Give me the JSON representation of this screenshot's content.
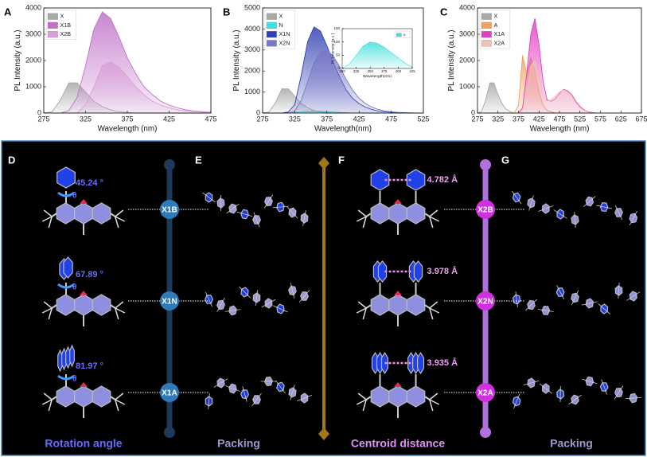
{
  "chart_data": [
    {
      "type": "line",
      "panel": "A",
      "xlabel": "Wavelength (nm)",
      "ylabel": "PL Intensity (a.u.)",
      "x": [
        275,
        285,
        295,
        305,
        315,
        325,
        335,
        345,
        355,
        365,
        375,
        385,
        395,
        405,
        415,
        425,
        435,
        445,
        455,
        465,
        475
      ],
      "xlim": [
        275,
        475
      ],
      "xticks": [
        275,
        325,
        375,
        425,
        475
      ],
      "ylim": [
        0,
        4000
      ],
      "yticks": [
        0,
        1000,
        2000,
        3000,
        4000
      ],
      "legend": "upper left",
      "series": [
        {
          "name": "X",
          "color": "#a8a8a8",
          "values": [
            0,
            50,
            500,
            1150,
            1150,
            800,
            450,
            250,
            120,
            50,
            20,
            0,
            0,
            0,
            0,
            0,
            0,
            0,
            0,
            0,
            0
          ]
        },
        {
          "name": "X1B",
          "color": "#c070c8",
          "values": [
            0,
            0,
            0,
            100,
            600,
            1800,
            3200,
            3850,
            3600,
            2900,
            2100,
            1500,
            1000,
            700,
            450,
            300,
            200,
            120,
            80,
            50,
            30
          ]
        },
        {
          "name": "X2B",
          "color": "#d8a0d8",
          "values": [
            0,
            0,
            0,
            0,
            0,
            300,
            1000,
            1800,
            1950,
            1750,
            1400,
            1000,
            700,
            450,
            300,
            200,
            120,
            80,
            50,
            30,
            20
          ]
        }
      ]
    },
    {
      "type": "line",
      "panel": "B",
      "xlabel": "Wavelength(nm)",
      "ylabel": "PL Intensity (a.u.)",
      "x": [
        275,
        285,
        295,
        305,
        315,
        325,
        335,
        345,
        355,
        365,
        375,
        385,
        395,
        405,
        415,
        425,
        435,
        445,
        455,
        465,
        475,
        485,
        495,
        505,
        515,
        525
      ],
      "xlim": [
        275,
        525
      ],
      "xticks": [
        275,
        325,
        375,
        425,
        475,
        525
      ],
      "ylim": [
        0,
        5000
      ],
      "yticks": [
        0,
        1000,
        2000,
        3000,
        4000,
        5000
      ],
      "legend": "upper left",
      "series": [
        {
          "name": "X",
          "color": "#a8a8a8",
          "values": [
            0,
            50,
            500,
            1150,
            1150,
            800,
            450,
            250,
            120,
            50,
            20,
            0,
            0,
            0,
            0,
            0,
            0,
            0,
            0,
            0,
            0,
            0,
            0,
            0,
            0,
            0
          ]
        },
        {
          "name": "N",
          "color": "#40dede",
          "values": [
            0,
            0,
            0,
            0,
            10,
            30,
            60,
            90,
            100,
            90,
            70,
            50,
            30,
            15,
            5,
            0,
            0,
            0,
            0,
            0,
            0,
            0,
            0,
            0,
            0,
            0
          ]
        },
        {
          "name": "X1N",
          "color": "#3040b0",
          "values": [
            0,
            0,
            0,
            0,
            50,
            400,
            1800,
            3400,
            4100,
            3900,
            3200,
            2400,
            1700,
            1100,
            700,
            450,
            280,
            170,
            100,
            60,
            35,
            20,
            10,
            5,
            0,
            0
          ]
        },
        {
          "name": "X2N",
          "color": "#7878c8",
          "values": [
            0,
            0,
            0,
            0,
            0,
            100,
            600,
            1500,
            2400,
            2900,
            3000,
            2700,
            2200,
            1600,
            1100,
            700,
            450,
            280,
            170,
            100,
            60,
            35,
            20,
            10,
            5,
            0
          ]
        }
      ]
    },
    {
      "type": "line",
      "panel": "C",
      "xlabel": "Wavelength (nm)",
      "ylabel": "PL Intensity (a.u.)",
      "x": [
        275,
        285,
        295,
        305,
        315,
        325,
        335,
        345,
        355,
        365,
        375,
        385,
        395,
        405,
        415,
        425,
        435,
        445,
        455,
        465,
        475,
        485,
        495,
        505,
        515,
        525,
        535,
        545,
        555,
        565,
        575,
        585,
        595,
        605,
        615,
        625,
        635,
        645,
        655,
        665,
        675
      ],
      "xlim": [
        275,
        675
      ],
      "xticks": [
        275,
        325,
        375,
        425,
        475,
        525,
        575,
        625,
        675
      ],
      "ylim": [
        0,
        4000
      ],
      "yticks": [
        0,
        1000,
        2000,
        3000,
        4000
      ],
      "legend": "upper left",
      "series": [
        {
          "name": "X",
          "color": "#a8a8a8",
          "values": [
            0,
            50,
            500,
            1150,
            1150,
            700,
            350,
            150,
            50,
            0,
            0,
            0,
            0,
            0,
            0,
            0,
            0,
            0,
            0,
            0,
            0,
            0,
            0,
            0,
            0,
            0,
            0,
            0,
            0,
            0,
            0,
            0,
            0,
            0,
            0,
            0,
            0,
            0,
            0,
            0,
            0
          ]
        },
        {
          "name": "A",
          "color": "#f0a060",
          "values": [
            0,
            0,
            0,
            0,
            0,
            0,
            0,
            0,
            0,
            0,
            300,
            2200,
            1500,
            2100,
            1600,
            800,
            300,
            100,
            50,
            0,
            0,
            0,
            0,
            0,
            0,
            0,
            0,
            0,
            0,
            0,
            0,
            0,
            0,
            0,
            0,
            0,
            0,
            0,
            0,
            0,
            0
          ]
        },
        {
          "name": "X1A",
          "color": "#e040c0",
          "values": [
            0,
            0,
            0,
            0,
            0,
            0,
            0,
            0,
            0,
            0,
            0,
            200,
            1500,
            3000,
            3600,
            2600,
            1200,
            500,
            450,
            550,
            750,
            900,
            850,
            700,
            450,
            250,
            120,
            50,
            20,
            0,
            0,
            0,
            0,
            0,
            0,
            0,
            0,
            0,
            0,
            0,
            0
          ]
        },
        {
          "name": "X2A",
          "color": "#f0c0b0",
          "values": [
            0,
            0,
            0,
            0,
            0,
            0,
            0,
            0,
            0,
            0,
            0,
            100,
            800,
            1800,
            2000,
            1400,
            700,
            450,
            500,
            650,
            800,
            880,
            800,
            600,
            400,
            200,
            100,
            40,
            0,
            0,
            0,
            0,
            0,
            0,
            0,
            0,
            0,
            0,
            0,
            0,
            0
          ]
        }
      ]
    },
    {
      "type": "line",
      "xlabel": "Wavelength(nm)",
      "ylabel": "PL Intensity (a.u.)",
      "x": [
        300,
        312.5,
        325,
        337.5,
        350,
        362.5,
        375,
        387.5,
        400,
        412.5,
        425
      ],
      "xlim": [
        300,
        425
      ],
      "xticks": [
        300,
        325,
        350,
        375,
        400,
        425
      ],
      "ylim": [
        0,
        150
      ],
      "yticks": [
        0,
        50,
        100,
        150
      ],
      "legend": "upper right",
      "series": [
        {
          "name": "N",
          "color": "#40dede",
          "values": [
            0,
            15,
            50,
            85,
            100,
            95,
            80,
            60,
            40,
            20,
            5
          ]
        }
      ]
    }
  ],
  "diagram": {
    "rotation": {
      "letter": "D",
      "caption": "Rotation angle",
      "angles": [
        "45.24 °",
        "67.89 °",
        "81.97 °"
      ],
      "symbol": "θ"
    },
    "packing_left": {
      "letter": "E",
      "caption": "Packing"
    },
    "centroid": {
      "letter": "F",
      "caption": "Centroid distance",
      "distances": [
        "4.782 Å",
        "3.978 Å",
        "3.935 Å"
      ]
    },
    "packing_right": {
      "letter": "G",
      "caption": "Packing"
    },
    "nodes_left": [
      "X1B",
      "X1N",
      "X1A"
    ],
    "nodes_right": [
      "X2B",
      "X2N",
      "X2A"
    ]
  }
}
